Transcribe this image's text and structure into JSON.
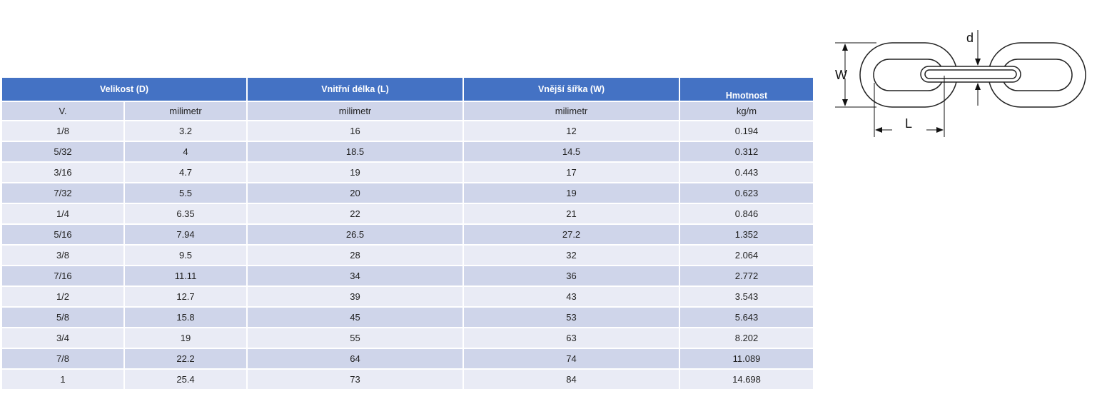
{
  "table": {
    "headers": {
      "size": "Velikost (D)",
      "inner_length": "Vnitřní délka (L)",
      "outer_width": "Vnější šířka (W)",
      "weight": "Hmotnost"
    },
    "units": {
      "size_in": "V.",
      "size_mm": "milimetr",
      "inner_length": "milimetr",
      "outer_width": "milimetr",
      "weight": "kg/m"
    },
    "rows": [
      {
        "in": "1/8",
        "mm": "3.2",
        "l": "16",
        "w": "12",
        "kg": "0.194"
      },
      {
        "in": "5/32",
        "mm": "4",
        "l": "18.5",
        "w": "14.5",
        "kg": "0.312"
      },
      {
        "in": "3/16",
        "mm": "4.7",
        "l": "19",
        "w": "17",
        "kg": "0.443"
      },
      {
        "in": "7/32",
        "mm": "5.5",
        "l": "20",
        "w": "19",
        "kg": "0.623"
      },
      {
        "in": "1/4",
        "mm": "6.35",
        "l": "22",
        "w": "21",
        "kg": "0.846"
      },
      {
        "in": "5/16",
        "mm": "7.94",
        "l": "26.5",
        "w": "27.2",
        "kg": "1.352"
      },
      {
        "in": "3/8",
        "mm": "9.5",
        "l": "28",
        "w": "32",
        "kg": "2.064"
      },
      {
        "in": "7/16",
        "mm": "11.11",
        "l": "34",
        "w": "36",
        "kg": "2.772"
      },
      {
        "in": "1/2",
        "mm": "12.7",
        "l": "39",
        "w": "43",
        "kg": "3.543"
      },
      {
        "in": "5/8",
        "mm": "15.8",
        "l": "45",
        "w": "53",
        "kg": "5.643"
      },
      {
        "in": "3/4",
        "mm": "19",
        "l": "55",
        "w": "63",
        "kg": "8.202"
      },
      {
        "in": "7/8",
        "mm": "22.2",
        "l": "64",
        "w": "74",
        "kg": "11.089"
      },
      {
        "in": "1",
        "mm": "25.4",
        "l": "73",
        "w": "84",
        "kg": "14.698"
      }
    ],
    "colors": {
      "header_bg": "#4472c4",
      "row_light": "#e9ebf5",
      "row_dark": "#cfd5ea"
    }
  },
  "diagram": {
    "label_w": "W",
    "label_l": "L",
    "label_d": "d"
  }
}
